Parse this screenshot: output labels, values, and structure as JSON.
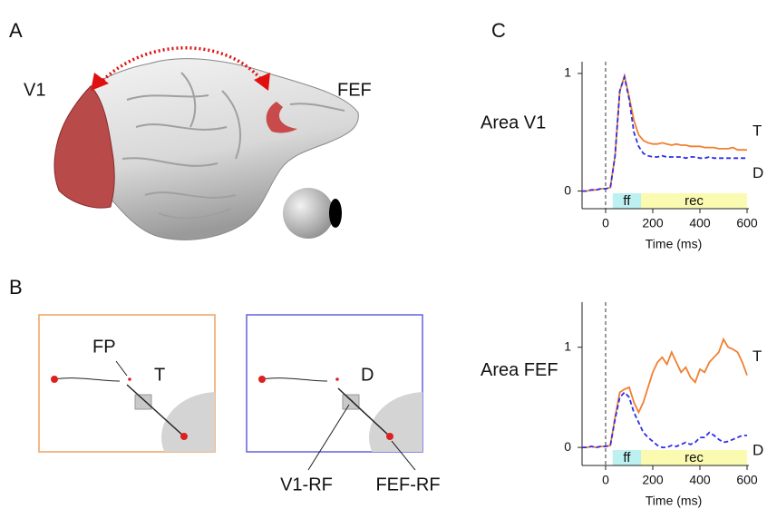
{
  "figure": {
    "panel_labels": [
      "A",
      "B",
      "C"
    ],
    "brain": {
      "v1": "V1",
      "fef": "FEF"
    },
    "schematic": {
      "fp": "FP",
      "target": "T",
      "distractor": "D",
      "v1_rf": "V1-RF",
      "fef_rf": "FEF-RF"
    }
  },
  "chart_data": [
    {
      "type": "line",
      "title": "Area V1",
      "x_label": "Time (ms)",
      "xlim": [
        -100,
        600
      ],
      "xticks": [
        0,
        200,
        400,
        600
      ],
      "ylim": [
        -0.15,
        1.1
      ],
      "yticks": [
        0,
        1
      ],
      "vline": 0,
      "bands": [
        {
          "label": "ff",
          "from": 30,
          "to": 150,
          "color": "#bdf0f0"
        },
        {
          "label": "rec",
          "from": 150,
          "to": 600,
          "color": "#fafab0"
        }
      ],
      "x": [
        -100,
        -80,
        -60,
        -40,
        -20,
        0,
        20,
        40,
        60,
        80,
        100,
        120,
        140,
        160,
        180,
        200,
        220,
        240,
        260,
        280,
        300,
        320,
        340,
        360,
        380,
        400,
        420,
        440,
        460,
        480,
        500,
        520,
        540,
        560,
        580,
        600
      ],
      "series": [
        {
          "name": "T",
          "color": "#f08030",
          "dashed": false,
          "values": [
            0,
            0,
            0.01,
            0.01,
            0.02,
            0.02,
            0.03,
            0.3,
            0.85,
            0.98,
            0.8,
            0.6,
            0.48,
            0.43,
            0.41,
            0.4,
            0.4,
            0.41,
            0.4,
            0.39,
            0.4,
            0.39,
            0.39,
            0.38,
            0.38,
            0.38,
            0.37,
            0.37,
            0.37,
            0.36,
            0.36,
            0.36,
            0.37,
            0.35,
            0.35,
            0.35
          ]
        },
        {
          "name": "D",
          "color": "#2e2ee8",
          "dashed": true,
          "values": [
            0,
            0,
            0.01,
            0.01,
            0.02,
            0.02,
            0.03,
            0.3,
            0.85,
            0.97,
            0.78,
            0.5,
            0.38,
            0.32,
            0.3,
            0.29,
            0.29,
            0.3,
            0.29,
            0.29,
            0.29,
            0.29,
            0.28,
            0.29,
            0.29,
            0.28,
            0.28,
            0.29,
            0.28,
            0.28,
            0.28,
            0.28,
            0.28,
            0.28,
            0.28,
            0.28
          ]
        }
      ]
    },
    {
      "type": "line",
      "title": "Area FEF",
      "x_label": "Time (ms)",
      "xlim": [
        -100,
        600
      ],
      "xticks": [
        0,
        200,
        400,
        600
      ],
      "ylim": [
        -0.18,
        1.45
      ],
      "yticks": [
        0,
        1
      ],
      "vline": 0,
      "bands": [
        {
          "label": "ff",
          "from": 30,
          "to": 150,
          "color": "#bdf0f0"
        },
        {
          "label": "rec",
          "from": 150,
          "to": 600,
          "color": "#fafab0"
        }
      ],
      "x": [
        -100,
        -80,
        -60,
        -40,
        -20,
        0,
        20,
        40,
        60,
        80,
        100,
        120,
        140,
        160,
        180,
        200,
        220,
        240,
        260,
        280,
        300,
        320,
        340,
        360,
        380,
        400,
        420,
        440,
        460,
        480,
        500,
        520,
        540,
        560,
        580,
        600
      ],
      "series": [
        {
          "name": "T",
          "color": "#f08030",
          "dashed": false,
          "values": [
            0,
            0,
            0.01,
            0,
            0.01,
            0.01,
            0.02,
            0.3,
            0.55,
            0.58,
            0.6,
            0.45,
            0.35,
            0.45,
            0.6,
            0.75,
            0.85,
            0.9,
            0.83,
            0.95,
            0.85,
            0.75,
            0.8,
            0.7,
            0.65,
            0.78,
            0.75,
            0.85,
            0.9,
            0.95,
            1.08,
            1.0,
            0.98,
            0.95,
            0.85,
            0.72
          ]
        },
        {
          "name": "D",
          "color": "#2e2ee8",
          "dashed": true,
          "values": [
            0,
            0,
            0.01,
            0,
            0.01,
            0.01,
            0.02,
            0.28,
            0.5,
            0.55,
            0.5,
            0.35,
            0.25,
            0.15,
            0.1,
            0.06,
            0.02,
            0,
            0,
            0.02,
            0.01,
            0.03,
            0.05,
            0.03,
            0.05,
            0.1,
            0.1,
            0.15,
            0.12,
            0.08,
            0.05,
            0.06,
            0.08,
            0.1,
            0.12,
            0.12
          ]
        }
      ]
    }
  ]
}
